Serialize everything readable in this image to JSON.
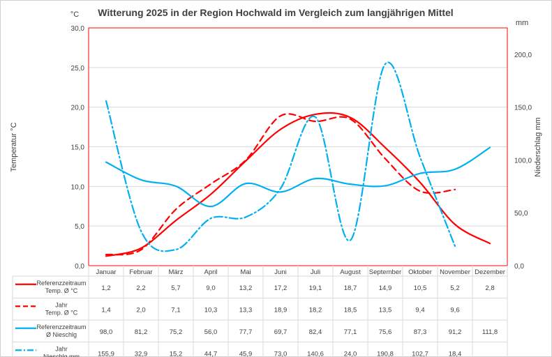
{
  "chart_data": {
    "type": "line",
    "title": "Witterung 2025 in der Region Hochwald im Vergleich zum langjährigen Mittel",
    "y_left_unit": "°C",
    "y_right_unit": "mm",
    "ylabel_left": "Temperatur °C",
    "ylabel_right": "Niederschlag mm",
    "ylim_left": [
      0,
      30
    ],
    "ylim_right": [
      0,
      225
    ],
    "yticks_left": [
      "0,0",
      "5,0",
      "10,0",
      "15,0",
      "20,0",
      "25,0",
      "30,0"
    ],
    "yticks_right": [
      "0,0",
      "50,0",
      "100,0",
      "150,0",
      "200,0"
    ],
    "categories": [
      "Januar",
      "Februar",
      "März",
      "April",
      "Mai",
      "Juni",
      "Juli",
      "August",
      "September",
      "Oktober",
      "November",
      "Dezember"
    ],
    "series": [
      {
        "key": "ref_temp",
        "name_line1": "Referenzzeitraum",
        "name_line2": "Temp. Ø °C",
        "axis": "left",
        "color": "#ff0000",
        "values": [
          1.2,
          2.2,
          5.7,
          9.0,
          13.2,
          17.2,
          19.1,
          18.7,
          14.9,
          10.5,
          5.2,
          2.8
        ],
        "labels": [
          "1,2",
          "2,2",
          "5,7",
          "9,0",
          "13,2",
          "17,2",
          "19,1",
          "18,7",
          "14,9",
          "10,5",
          "5,2",
          "2,8"
        ]
      },
      {
        "key": "year_temp",
        "name_line1": "Jahr",
        "name_line2": "Temp. Ø °C",
        "axis": "left",
        "color": "#ff0000",
        "values": [
          1.4,
          2.0,
          7.1,
          10.3,
          13.3,
          18.9,
          18.2,
          18.5,
          13.5,
          9.4,
          9.6,
          null
        ],
        "labels": [
          "1,4",
          "2,0",
          "7,1",
          "10,3",
          "13,3",
          "18,9",
          "18,2",
          "18,5",
          "13,5",
          "9,4",
          "9,6",
          ""
        ]
      },
      {
        "key": "ref_rain",
        "name_line1": "Referenzzeitraum",
        "name_line2": "Ø Nieschlg",
        "axis": "right",
        "color": "#00b0f0",
        "values": [
          98.0,
          81.2,
          75.2,
          56.0,
          77.7,
          69.7,
          82.4,
          77.1,
          75.6,
          87.3,
          91.2,
          111.8
        ],
        "labels": [
          "98,0",
          "81,2",
          "75,2",
          "56,0",
          "77,7",
          "69,7",
          "82,4",
          "77,1",
          "75,6",
          "87,3",
          "91,2",
          "111,8"
        ]
      },
      {
        "key": "year_rain",
        "name_line1": "Jahr",
        "name_line2": "Nieschlg mm",
        "axis": "right",
        "color": "#00b0f0",
        "values": [
          155.9,
          32.9,
          15.2,
          44.7,
          45.9,
          73.0,
          140.6,
          24.0,
          190.8,
          102.7,
          18.4,
          null
        ],
        "labels": [
          "155,9",
          "32,9",
          "15,2",
          "44,7",
          "45,9",
          "73,0",
          "140,6",
          "24,0",
          "190,8",
          "102,7",
          "18,4",
          ""
        ]
      }
    ]
  }
}
